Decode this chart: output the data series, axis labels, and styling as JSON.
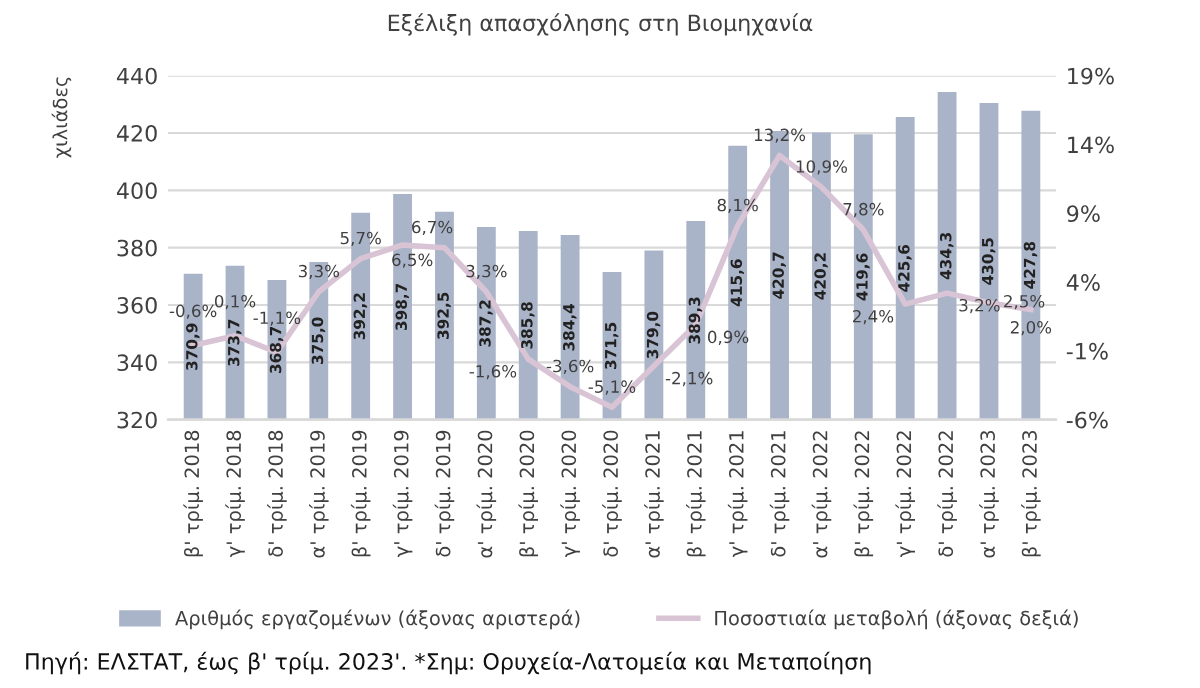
{
  "chart_data": {
    "type": "bar",
    "title": "Εξέλιξη απασχόλησης στη Βιομηχανία",
    "ylabel": "χιλιάδες",
    "categories": [
      "β' τρίμ. 2018",
      "γ' τρίμ. 2018",
      "δ' τρίμ. 2018",
      "α' τρίμ. 2019",
      "β' τρίμ. 2019",
      "γ' τρίμ. 2019",
      "δ' τρίμ. 2019",
      "α' τρίμ. 2020",
      "β' τρίμ. 2020",
      "γ' τρίμ. 2020",
      "δ' τρίμ. 2020",
      "α' τρίμ. 2021",
      "β' τρίμ. 2021",
      "γ' τρίμ. 2021",
      "δ' τρίμ. 2021",
      "α' τρίμ. 2022",
      "β' τρίμ. 2022",
      "γ' τρίμ. 2022",
      "δ' τρίμ. 2022",
      "α' τρίμ. 2023",
      "β' τρίμ. 2023"
    ],
    "series": [
      {
        "name": "Αριθμός εργαζομένων (άξονας αριστερά)",
        "color": "#aab4c8",
        "values": [
          370.9,
          373.7,
          368.7,
          375.0,
          392.2,
          398.7,
          392.5,
          387.2,
          385.8,
          384.4,
          371.5,
          379.0,
          389.3,
          415.6,
          420.7,
          420.2,
          419.6,
          425.6,
          434.3,
          430.5,
          427.8
        ],
        "value_labels": [
          "370,9",
          "373,7",
          "368,7",
          "375,0",
          "392,2",
          "398,7",
          "392,5",
          "387,2",
          "385,8",
          "384,4",
          "371,5",
          "379,0",
          "389,3",
          "415,6",
          "420,7",
          "420,2",
          "419,6",
          "425,6",
          "434,3",
          "430,5",
          "427,8"
        ]
      },
      {
        "name": "Ποσοστιαία μεταβολή (άξονας δεξιά)",
        "type": "line",
        "axis": "y2",
        "color": "#d8c4d4",
        "values": [
          -0.6,
          0.1,
          -1.1,
          3.3,
          5.7,
          6.7,
          6.5,
          3.3,
          -1.6,
          -3.6,
          -5.1,
          -2.1,
          0.9,
          8.1,
          13.2,
          10.9,
          7.8,
          2.4,
          3.2,
          2.5,
          2.0
        ],
        "value_labels": [
          "-0,6%",
          "0,1%",
          "-1,1%",
          "3,3%",
          "5,7%",
          "6,7%",
          "6,5%",
          "3,3%",
          "-1,6%",
          "-3,6%",
          "-5,1%",
          "-2,1%",
          "0,9%",
          "8,1%",
          "13,2%",
          "10,9%",
          "7,8%",
          "2,4%",
          "3,2%",
          "2,5%",
          "2,0%"
        ]
      }
    ],
    "ylim": [
      320,
      440
    ],
    "yticks": [
      320,
      340,
      360,
      380,
      400,
      420,
      440
    ],
    "y2lim": [
      -6,
      19
    ],
    "y2ticks": [
      {
        "value": -6,
        "label": "-6%"
      },
      {
        "value": -1,
        "label": "-1%"
      },
      {
        "value": 4,
        "label": "4%"
      },
      {
        "value": 9,
        "label": "9%"
      },
      {
        "value": 14,
        "label": "14%"
      },
      {
        "value": 19,
        "label": "19%"
      }
    ],
    "grid": "y",
    "legend": "bottom",
    "marker": "none",
    "line_style": "solid",
    "annotations": [
      "Πηγή: ΕΛΣΤΑΤ, έως β' τρίμ. 2023'. *Σημ: Ορυχεία-Λατομεία και Μεταποίηση"
    ]
  }
}
